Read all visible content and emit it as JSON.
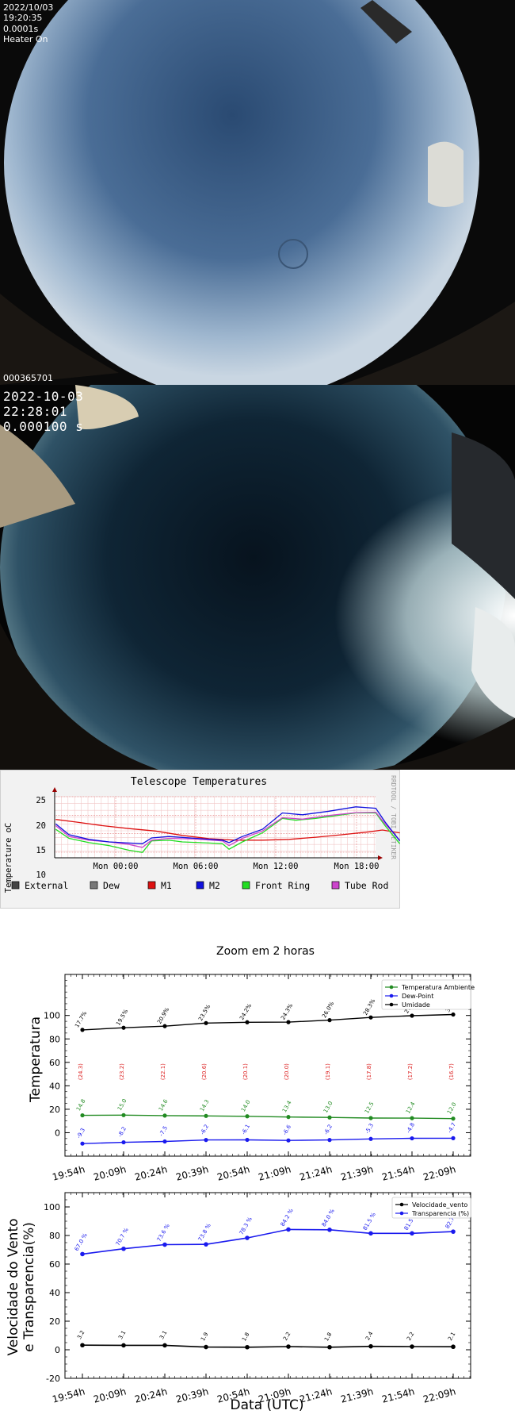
{
  "camera1": {
    "date": "2022/10/03",
    "time": "19:20:35",
    "exposure": "0.0001s",
    "heater": "Heater On",
    "frame_id": "000365701"
  },
  "camera2": {
    "date": "2022-10-03",
    "time": "22:28:01",
    "exposure": "0.000100 s"
  },
  "telescope": {
    "title": "Telescope Temperatures",
    "ylabel": "Temperature oC",
    "side_label": "RRDTOOL / TOBI OETIKER",
    "yticks": [
      "10",
      "15",
      "20",
      "25"
    ],
    "xticks": [
      "Mon 00:00",
      "Mon 06:00",
      "Mon 12:00",
      "Mon 18:00"
    ],
    "legend": [
      {
        "label": "External",
        "color": "#444444"
      },
      {
        "label": "Dew",
        "color": "#777777"
      },
      {
        "label": "M1",
        "color": "#dd1111"
      },
      {
        "label": "M2",
        "color": "#1111dd"
      },
      {
        "label": "Front Ring",
        "color": "#22dd22"
      },
      {
        "label": "Tube Rod",
        "color": "#cc44cc"
      }
    ]
  },
  "chart_data": [
    {
      "type": "line",
      "title": "Zoom em 2 horas",
      "xlabel": "",
      "ylabel": "Temperatura",
      "x": [
        "19:54h",
        "20:09h",
        "20:24h",
        "20:39h",
        "20:54h",
        "21:09h",
        "21:24h",
        "21:39h",
        "21:54h",
        "22:09h"
      ],
      "ylim": [
        -20,
        135
      ],
      "yticks": [
        0,
        20,
        40,
        60,
        80,
        100
      ],
      "legend_position": "top-right",
      "series": [
        {
          "name": "Temperatura Ambiente",
          "color": "#228b22",
          "values": [
            14.8,
            15.0,
            14.6,
            14.3,
            14.0,
            13.4,
            13.0,
            12.5,
            12.4,
            12.0
          ],
          "labels": [
            "14.8",
            "15.0",
            "14.6",
            "14.3",
            "14.0",
            "13.4",
            "13.0",
            "12.5",
            "12.4",
            "12.0"
          ]
        },
        {
          "name": "Dew-Point",
          "color": "#1a1aee",
          "values": [
            -9.3,
            -8.2,
            -7.5,
            -6.2,
            -6.1,
            -6.6,
            -6.2,
            -5.3,
            -4.8,
            -4.7
          ],
          "labels": [
            "-9.3",
            "-8.2",
            "-7.5",
            "-6.2",
            "-6.1",
            "-6.6",
            "-6.2",
            "-5.3",
            "-4.8",
            "-4.7"
          ]
        },
        {
          "name": "Umidade",
          "color": "#000000",
          "values": [
            87.7,
            89.5,
            90.9,
            93.5,
            94.2,
            94.3,
            96.0,
            98.3,
            99.8,
            100.8
          ],
          "labels": [
            "17.7%",
            "19.5%",
            "20.9%",
            "23.5%",
            "24.2%",
            "24.3%",
            "26.0%",
            "28.3%",
            "29.8%",
            "30.8%"
          ]
        }
      ],
      "annotations": {
        "color": "#dd2222",
        "labels": [
          "(24.3)",
          "(23.2)",
          "(22.1)",
          "(20.6)",
          "(20.1)",
          "(20.0)",
          "(19.1)",
          "(17.8)",
          "(17.2)",
          "(16.7)"
        ]
      }
    },
    {
      "type": "line",
      "title": "",
      "xlabel": "Data (UTC)",
      "ylabel": "Velocidade do Vento\ne Transparencia(%)",
      "x": [
        "19:54h",
        "20:09h",
        "20:24h",
        "20:39h",
        "20:54h",
        "21:09h",
        "21:24h",
        "21:39h",
        "21:54h",
        "22:09h"
      ],
      "ylim": [
        -20,
        110
      ],
      "yticks": [
        -20,
        0,
        20,
        40,
        60,
        80,
        100
      ],
      "legend_position": "top-right",
      "series": [
        {
          "name": "Velocidade_vento",
          "color": "#000000",
          "values": [
            3.2,
            3.1,
            3.1,
            1.9,
            1.8,
            2.2,
            1.8,
            2.4,
            2.2,
            2.1
          ],
          "labels": [
            "3.2",
            "3.1",
            "3.1",
            "1.9",
            "1.8",
            "2.2",
            "1.8",
            "2.4",
            "2.2",
            "2.1"
          ]
        },
        {
          "name": "Transparencia (%)",
          "color": "#1a1aee",
          "values": [
            67.0,
            70.7,
            73.6,
            73.8,
            78.3,
            84.2,
            84.0,
            81.5,
            81.5,
            82.7
          ],
          "labels": [
            "67.0 %",
            "70.7 %",
            "73.6 %",
            "73.8 %",
            "78.3 %",
            "84.2 %",
            "84.0 %",
            "81.5 %",
            "81.5 %",
            "82.7 %"
          ]
        }
      ]
    }
  ]
}
